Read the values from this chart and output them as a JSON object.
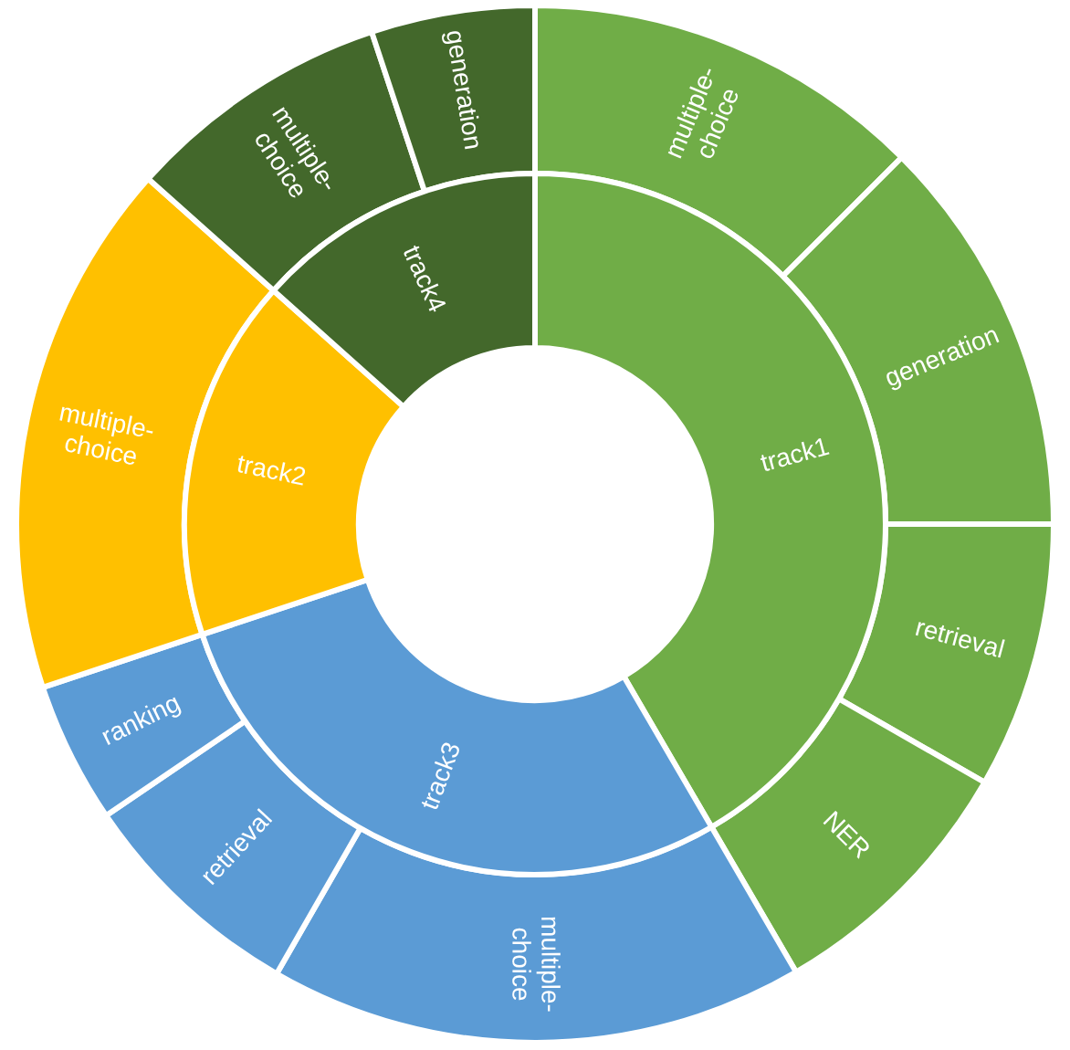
{
  "chart_data": [
    {
      "type": "donut",
      "categories": [
        "multiple-choice",
        "generation",
        "retrieval",
        "NER",
        "multiple-choice",
        "retrieval",
        "ranking",
        "multiple-choice",
        "multiple-choice",
        "generation"
      ],
      "values": [
        12.5,
        12.5,
        8.3,
        8.3,
        16.7,
        7.2,
        4.4,
        16.7,
        8.3,
        5.1
      ],
      "colors": [
        "#70ad47",
        "#70ad47",
        "#70ad47",
        "#70ad47",
        "#5b9bd5",
        "#5b9bd5",
        "#5b9bd5",
        "#ffc000",
        "#43682b",
        "#43682b"
      ]
    },
    {
      "type": "donut",
      "categories": [
        "track1",
        "track3",
        "track2",
        "track4"
      ],
      "values": [
        41.6,
        28.3,
        16.7,
        13.4
      ],
      "colors": [
        "#70ad47",
        "#5b9bd5",
        "#ffc000",
        "#43682b"
      ]
    }
  ]
}
